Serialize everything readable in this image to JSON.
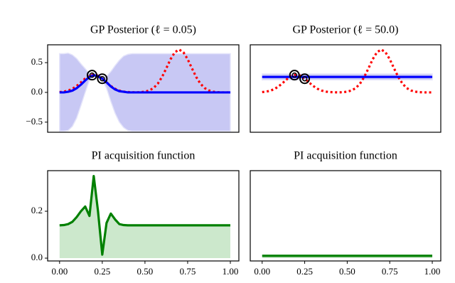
{
  "chart_data": [
    {
      "type": "line",
      "title": "GP Posterior (ℓ = 0.05)",
      "x": [
        0,
        0.025,
        0.05,
        0.075,
        0.1,
        0.125,
        0.15,
        0.175,
        0.2,
        0.225,
        0.25,
        0.275,
        0.3,
        0.325,
        0.35,
        0.375,
        0.4,
        0.425,
        0.45,
        0.475,
        0.5,
        0.525,
        0.55,
        0.575,
        0.6,
        0.625,
        0.65,
        0.675,
        0.7,
        0.725,
        0.75,
        0.775,
        0.8,
        0.825,
        0.85,
        0.875,
        0.9,
        0.925,
        0.95,
        0.975,
        1
      ],
      "band": {
        "color": "#c8c8f4",
        "upper": [
          0.65,
          0.65,
          0.66,
          0.63,
          0.57,
          0.48,
          0.4,
          0.31,
          0.31,
          0.3,
          0.25,
          0.27,
          0.35,
          0.45,
          0.54,
          0.61,
          0.64,
          0.65,
          0.65,
          0.65,
          0.65,
          0.65,
          0.65,
          0.65,
          0.65,
          0.65,
          0.65,
          0.65,
          0.65,
          0.65,
          0.65,
          0.65,
          0.65,
          0.65,
          0.65,
          0.65,
          0.65,
          0.65,
          0.65,
          0.65,
          0.65
        ],
        "lower": [
          -0.65,
          -0.65,
          -0.64,
          -0.57,
          -0.43,
          -0.22,
          0,
          0.21,
          0.27,
          0.24,
          0.21,
          0.07,
          -0.15,
          -0.35,
          -0.5,
          -0.59,
          -0.64,
          -0.65,
          -0.65,
          -0.65,
          -0.65,
          -0.65,
          -0.65,
          -0.65,
          -0.65,
          -0.65,
          -0.65,
          -0.65,
          -0.65,
          -0.65,
          -0.65,
          -0.65,
          -0.65,
          -0.65,
          -0.65,
          -0.65,
          -0.65,
          -0.65,
          -0.65,
          -0.65,
          -0.65
        ]
      },
      "series": [
        {
          "color": "#ff0000",
          "style": "dotted",
          "values": [
            0.005,
            0.013,
            0.03,
            0.061,
            0.108,
            0.169,
            0.233,
            0.281,
            0.3,
            0.281,
            0.233,
            0.169,
            0.108,
            0.061,
            0.03,
            0.013,
            0.005,
            0.002,
            0,
            0.004,
            0.012,
            0.032,
            0.072,
            0.146,
            0.259,
            0.405,
            0.558,
            0.675,
            0.72,
            0.675,
            0.558,
            0.405,
            0.259,
            0.146,
            0.072,
            0.032,
            0.012,
            0.004,
            0,
            0,
            0
          ]
        },
        {
          "color": "#0000ff",
          "style": "solid",
          "values": [
            0,
            0,
            0.01,
            0.03,
            0.07,
            0.13,
            0.2,
            0.26,
            0.29,
            0.27,
            0.23,
            0.17,
            0.1,
            0.05,
            0.02,
            0.01,
            0,
            0,
            0,
            0,
            0,
            0,
            0,
            0,
            0,
            0,
            0,
            0,
            0,
            0,
            0,
            0,
            0,
            0,
            0,
            0,
            0,
            0,
            0,
            0,
            0
          ]
        }
      ],
      "points": {
        "x": [
          0.19,
          0.25
        ],
        "y": [
          0.29,
          0.23
        ]
      },
      "xlim": [
        -0.07,
        1.05
      ],
      "ylim": [
        -0.67,
        0.8
      ],
      "yticks": [
        {
          "value": -0.5,
          "label": "−0.5"
        },
        {
          "value": 0,
          "label": "0.0"
        },
        0.5
      ]
    },
    {
      "type": "line",
      "title": "GP Posterior (ℓ = 50.0)",
      "x": [
        0,
        0.025,
        0.05,
        0.075,
        0.1,
        0.125,
        0.15,
        0.175,
        0.2,
        0.225,
        0.25,
        0.275,
        0.3,
        0.325,
        0.35,
        0.375,
        0.4,
        0.425,
        0.45,
        0.475,
        0.5,
        0.525,
        0.55,
        0.575,
        0.6,
        0.625,
        0.65,
        0.675,
        0.7,
        0.725,
        0.75,
        0.775,
        0.8,
        0.825,
        0.85,
        0.875,
        0.9,
        0.925,
        0.95,
        0.975,
        1
      ],
      "band": {
        "color": "#c8c8f4",
        "upper": [
          0.31,
          0.31,
          0.31,
          0.31,
          0.31,
          0.31,
          0.31,
          0.31,
          0.31,
          0.31,
          0.31,
          0.31,
          0.31,
          0.31,
          0.31,
          0.31,
          0.31,
          0.31,
          0.31,
          0.31,
          0.31,
          0.31,
          0.31,
          0.31,
          0.31,
          0.31,
          0.31,
          0.31,
          0.31,
          0.31,
          0.31,
          0.31,
          0.31,
          0.31,
          0.31,
          0.31,
          0.31,
          0.31,
          0.31,
          0.31,
          0.31
        ],
        "lower": [
          0.21,
          0.21,
          0.21,
          0.21,
          0.21,
          0.21,
          0.21,
          0.21,
          0.21,
          0.21,
          0.21,
          0.21,
          0.21,
          0.21,
          0.21,
          0.21,
          0.21,
          0.21,
          0.21,
          0.21,
          0.21,
          0.21,
          0.21,
          0.21,
          0.21,
          0.21,
          0.21,
          0.21,
          0.21,
          0.21,
          0.21,
          0.21,
          0.21,
          0.21,
          0.21,
          0.21,
          0.21,
          0.21,
          0.21,
          0.21,
          0.21
        ]
      },
      "series": [
        {
          "color": "#ff0000",
          "style": "dotted",
          "values": [
            0.005,
            0.013,
            0.03,
            0.061,
            0.108,
            0.169,
            0.233,
            0.281,
            0.3,
            0.281,
            0.233,
            0.169,
            0.108,
            0.061,
            0.03,
            0.013,
            0.005,
            0.002,
            0,
            0.004,
            0.012,
            0.032,
            0.072,
            0.146,
            0.259,
            0.405,
            0.558,
            0.675,
            0.72,
            0.675,
            0.558,
            0.405,
            0.259,
            0.146,
            0.072,
            0.032,
            0.012,
            0.004,
            0,
            0,
            0
          ]
        },
        {
          "color": "#0000ff",
          "style": "solid",
          "values": [
            0.26,
            0.26,
            0.26,
            0.26,
            0.26,
            0.26,
            0.26,
            0.26,
            0.26,
            0.26,
            0.26,
            0.26,
            0.26,
            0.26,
            0.26,
            0.26,
            0.26,
            0.26,
            0.26,
            0.26,
            0.26,
            0.26,
            0.26,
            0.26,
            0.26,
            0.26,
            0.26,
            0.26,
            0.26,
            0.26,
            0.26,
            0.26,
            0.26,
            0.26,
            0.26,
            0.26,
            0.26,
            0.26,
            0.26,
            0.26,
            0.26
          ]
        }
      ],
      "points": {
        "x": [
          0.19,
          0.25
        ],
        "y": [
          0.29,
          0.23
        ]
      },
      "xlim": [
        -0.07,
        1.05
      ],
      "ylim": [
        -0.67,
        0.8
      ]
    },
    {
      "type": "line",
      "title": "PI acquisition function",
      "fill": true,
      "fill_color": "#cce8cc",
      "x": [
        0,
        0.025,
        0.05,
        0.075,
        0.1,
        0.125,
        0.15,
        0.175,
        0.2,
        0.225,
        0.25,
        0.275,
        0.3,
        0.325,
        0.35,
        0.375,
        0.4,
        0.425,
        0.45,
        0.475,
        0.5,
        0.525,
        0.55,
        0.575,
        0.6,
        0.625,
        0.65,
        0.675,
        0.7,
        0.725,
        0.75,
        0.775,
        0.8,
        0.825,
        0.85,
        0.875,
        0.9,
        0.925,
        0.95,
        0.975,
        1
      ],
      "series": [
        {
          "color": "#008000",
          "style": "solid",
          "values": [
            0.14,
            0.141,
            0.145,
            0.155,
            0.175,
            0.2,
            0.22,
            0.18,
            0.35,
            0.2,
            0.015,
            0.15,
            0.19,
            0.165,
            0.145,
            0.141,
            0.14,
            0.14,
            0.14,
            0.14,
            0.14,
            0.14,
            0.14,
            0.14,
            0.14,
            0.14,
            0.14,
            0.14,
            0.14,
            0.14,
            0.14,
            0.14,
            0.14,
            0.14,
            0.14,
            0.14,
            0.14,
            0.14,
            0.14,
            0.14,
            0.14
          ]
        }
      ],
      "xlim": [
        -0.07,
        1.05
      ],
      "ylim": [
        -0.012,
        0.373
      ],
      "xticks": [
        {
          "value": 0,
          "label": "0.00"
        },
        {
          "value": 0.25,
          "label": "0.25"
        },
        {
          "value": 0.5,
          "label": "0.50"
        },
        {
          "value": 0.75,
          "label": "0.75"
        },
        {
          "value": 1,
          "label": "1.00"
        }
      ],
      "yticks": [
        {
          "value": 0,
          "label": "0.0"
        },
        0.2
      ]
    },
    {
      "type": "line",
      "title": "PI acquisition function",
      "fill": true,
      "fill_color": "#cce8cc",
      "x": [
        0,
        0.025,
        0.05,
        0.075,
        0.1,
        0.125,
        0.15,
        0.175,
        0.2,
        0.225,
        0.25,
        0.275,
        0.3,
        0.325,
        0.35,
        0.375,
        0.4,
        0.425,
        0.45,
        0.475,
        0.5,
        0.525,
        0.55,
        0.575,
        0.6,
        0.625,
        0.65,
        0.675,
        0.7,
        0.725,
        0.75,
        0.775,
        0.8,
        0.825,
        0.85,
        0.875,
        0.9,
        0.925,
        0.95,
        0.975,
        1
      ],
      "series": [
        {
          "color": "#008000",
          "style": "solid",
          "values": [
            0.01,
            0.01,
            0.01,
            0.01,
            0.01,
            0.01,
            0.01,
            0.01,
            0.01,
            0.01,
            0.01,
            0.01,
            0.01,
            0.01,
            0.01,
            0.01,
            0.01,
            0.01,
            0.01,
            0.01,
            0.01,
            0.01,
            0.01,
            0.01,
            0.01,
            0.01,
            0.01,
            0.01,
            0.01,
            0.01,
            0.01,
            0.01,
            0.01,
            0.01,
            0.01,
            0.01,
            0.01,
            0.01,
            0.01,
            0.01,
            0.01
          ]
        }
      ],
      "xlim": [
        -0.07,
        1.05
      ],
      "ylim": [
        -0.012,
        0.373
      ],
      "xticks": [
        {
          "value": 0,
          "label": "0.00"
        },
        {
          "value": 0.25,
          "label": "0.25"
        },
        {
          "value": 0.5,
          "label": "0.50"
        },
        {
          "value": 0.75,
          "label": "0.75"
        },
        {
          "value": 1,
          "label": "1.00"
        }
      ]
    }
  ]
}
